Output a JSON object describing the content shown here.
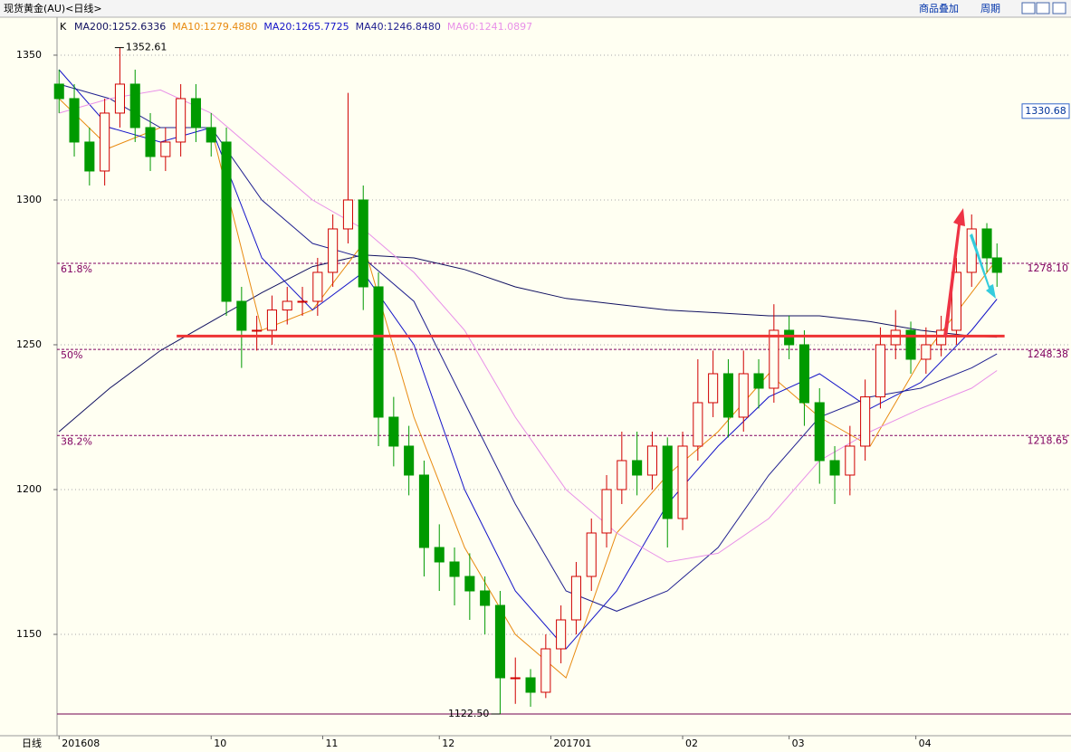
{
  "toolbar": {
    "title": "现货黄金(AU)<日线>",
    "buttons": [
      "商品叠加",
      "周期"
    ]
  },
  "chart_data": {
    "type": "candlestick",
    "indicator_label": "K",
    "period_label": "日线",
    "xlim": [
      -0.4,
      199.6
    ],
    "ylim": [
      1115,
      1362.8
    ],
    "yticks": [
      1150,
      1200,
      1250,
      1300,
      1350
    ],
    "xticks": [
      {
        "value": 0,
        "label": "201608"
      },
      {
        "value": 30,
        "label": "10"
      },
      {
        "value": 52,
        "label": "11"
      },
      {
        "value": 75,
        "label": "12"
      },
      {
        "value": 97,
        "label": "201701"
      },
      {
        "value": 123,
        "label": "02"
      },
      {
        "value": 144,
        "label": "03"
      },
      {
        "value": 169,
        "label": "04"
      }
    ],
    "grid": true,
    "up_color": "#d00000",
    "down_color": "#009a00",
    "x": [
      0,
      3,
      6,
      9,
      12,
      15,
      18,
      21,
      24,
      27,
      30,
      33,
      36,
      39,
      42,
      45,
      48,
      51,
      54,
      57,
      60,
      63,
      66,
      69,
      72,
      75,
      78,
      81,
      84,
      87,
      90,
      93,
      96,
      99,
      102,
      105,
      108,
      111,
      114,
      117,
      120,
      123,
      126,
      129,
      132,
      135,
      138,
      141,
      144,
      147,
      150,
      153,
      156,
      159,
      162,
      165,
      168,
      171,
      174,
      177,
      180,
      183,
      185
    ],
    "series": [
      {
        "name": "K",
        "ohlc": [
          [
            1340,
            1345,
            1330,
            1335
          ],
          [
            1335,
            1340,
            1315,
            1320
          ],
          [
            1320,
            1325,
            1305,
            1310
          ],
          [
            1310,
            1335,
            1305,
            1330
          ],
          [
            1330,
            1352.61,
            1325,
            1340
          ],
          [
            1340,
            1345,
            1320,
            1325
          ],
          [
            1325,
            1330,
            1310,
            1315
          ],
          [
            1315,
            1325,
            1310,
            1320
          ],
          [
            1320,
            1340,
            1315,
            1335
          ],
          [
            1335,
            1340,
            1320,
            1325
          ],
          [
            1325,
            1330,
            1315,
            1320
          ],
          [
            1320,
            1325,
            1260,
            1265
          ],
          [
            1265,
            1270,
            1242,
            1255
          ],
          [
            1255,
            1260,
            1248,
            1255
          ],
          [
            1255,
            1267,
            1250,
            1262
          ],
          [
            1262,
            1270,
            1257,
            1265
          ],
          [
            1265,
            1270,
            1260,
            1265
          ],
          [
            1265,
            1280,
            1260,
            1275
          ],
          [
            1275,
            1295,
            1270,
            1290
          ],
          [
            1290,
            1337,
            1285,
            1300
          ],
          [
            1300,
            1305,
            1262,
            1270
          ],
          [
            1270,
            1275,
            1215,
            1225
          ],
          [
            1225,
            1232,
            1208,
            1215
          ],
          [
            1215,
            1222,
            1198,
            1205
          ],
          [
            1205,
            1210,
            1170,
            1180
          ],
          [
            1180,
            1188,
            1165,
            1175
          ],
          [
            1175,
            1180,
            1160,
            1170
          ],
          [
            1170,
            1178,
            1155,
            1165
          ],
          [
            1165,
            1170,
            1150,
            1160
          ],
          [
            1160,
            1165,
            1122.5,
            1135
          ],
          [
            1135,
            1142,
            1126,
            1135
          ],
          [
            1135,
            1138,
            1125,
            1130
          ],
          [
            1130,
            1150,
            1128,
            1145
          ],
          [
            1145,
            1160,
            1140,
            1155
          ],
          [
            1155,
            1175,
            1150,
            1170
          ],
          [
            1170,
            1190,
            1165,
            1185
          ],
          [
            1185,
            1205,
            1180,
            1200
          ],
          [
            1200,
            1220,
            1195,
            1210
          ],
          [
            1210,
            1220,
            1198,
            1205
          ],
          [
            1205,
            1220,
            1200,
            1215
          ],
          [
            1215,
            1218,
            1180,
            1190
          ],
          [
            1190,
            1220,
            1186,
            1215
          ],
          [
            1215,
            1245,
            1210,
            1230
          ],
          [
            1230,
            1248,
            1225,
            1240
          ],
          [
            1240,
            1245,
            1218,
            1225
          ],
          [
            1225,
            1248,
            1220,
            1240
          ],
          [
            1240,
            1245,
            1228,
            1235
          ],
          [
            1235,
            1264,
            1230,
            1255
          ],
          [
            1255,
            1260,
            1245,
            1250
          ],
          [
            1250,
            1255,
            1222,
            1230
          ],
          [
            1230,
            1235,
            1202,
            1210
          ],
          [
            1210,
            1215,
            1195,
            1205
          ],
          [
            1205,
            1222,
            1198,
            1215
          ],
          [
            1215,
            1238,
            1210,
            1232
          ],
          [
            1232,
            1256,
            1228,
            1250
          ],
          [
            1250,
            1262,
            1245,
            1255
          ],
          [
            1255,
            1258,
            1240,
            1245
          ],
          [
            1245,
            1256,
            1240,
            1250
          ],
          [
            1250,
            1260,
            1246,
            1255
          ],
          [
            1255,
            1280,
            1250,
            1275
          ],
          [
            1275,
            1295,
            1270,
            1290
          ],
          [
            1290,
            1292,
            1275,
            1280
          ],
          [
            1280,
            1285,
            1270,
            1275
          ]
        ]
      }
    ],
    "lines": [
      {
        "label": "MA200:1252.6336",
        "color": "#101060",
        "x": [
          0,
          10,
          20,
          30,
          40,
          50,
          60,
          70,
          80,
          90,
          100,
          110,
          120,
          130,
          140,
          150,
          160,
          170,
          180,
          185
        ],
        "values": [
          1220,
          1235,
          1248,
          1258,
          1268,
          1277,
          1281,
          1280,
          1276,
          1270,
          1266,
          1264,
          1262,
          1261,
          1260,
          1260,
          1258,
          1255,
          1253,
          1252.63
        ]
      },
      {
        "label": "MA10:1279.4880",
        "color": "#e88a10",
        "x": [
          0,
          10,
          20,
          30,
          40,
          50,
          60,
          70,
          80,
          90,
          100,
          110,
          120,
          130,
          140,
          150,
          160,
          170,
          180,
          185
        ],
        "values": [
          1335,
          1318,
          1325,
          1325,
          1255,
          1262,
          1285,
          1225,
          1180,
          1150,
          1135,
          1185,
          1205,
          1220,
          1240,
          1225,
          1215,
          1245,
          1268,
          1279.49
        ]
      },
      {
        "label": "MA20:1265.7725",
        "color": "#1414c8",
        "x": [
          0,
          10,
          20,
          30,
          40,
          50,
          60,
          70,
          80,
          90,
          100,
          110,
          120,
          130,
          140,
          150,
          160,
          170,
          180,
          185
        ],
        "values": [
          1345,
          1325,
          1320,
          1325,
          1280,
          1262,
          1275,
          1250,
          1200,
          1165,
          1145,
          1165,
          1195,
          1215,
          1232,
          1240,
          1228,
          1237,
          1255,
          1265.77
        ]
      },
      {
        "label": "MA40:1246.8480",
        "color": "#202090",
        "x": [
          0,
          10,
          20,
          30,
          40,
          50,
          60,
          70,
          80,
          90,
          100,
          110,
          120,
          130,
          140,
          150,
          160,
          170,
          180,
          185
        ],
        "values": [
          1340,
          1335,
          1325,
          1325,
          1300,
          1285,
          1280,
          1265,
          1230,
          1195,
          1165,
          1158,
          1165,
          1180,
          1205,
          1225,
          1232,
          1235,
          1242,
          1246.85
        ]
      },
      {
        "label": "MA60:1241.0897",
        "color": "#e890e8",
        "x": [
          0,
          10,
          20,
          30,
          40,
          50,
          60,
          70,
          80,
          90,
          100,
          110,
          120,
          130,
          140,
          150,
          160,
          170,
          180,
          185
        ],
        "values": [
          1330,
          1335,
          1338,
          1330,
          1315,
          1300,
          1290,
          1275,
          1255,
          1225,
          1200,
          1185,
          1175,
          1178,
          1190,
          1210,
          1220,
          1228,
          1235,
          1241.09
        ]
      }
    ],
    "fib_levels": [
      {
        "name": "61.8%",
        "value": 1278.1,
        "label": "1278.10"
      },
      {
        "name": "50%",
        "value": 1248.38,
        "label": "1248.38"
      },
      {
        "name": "38.2%",
        "value": 1218.65,
        "label": "1218.65"
      }
    ],
    "annotations": [
      {
        "text": "1352.61",
        "value": 1352.61,
        "x": 11
      },
      {
        "text": "1122.50",
        "value": 1122.5,
        "x": 87
      }
    ],
    "support_line": {
      "value": 1253,
      "x": [
        23.2,
        186.5
      ]
    },
    "low_line": 1122.5,
    "price_tag": {
      "value": 1330.68,
      "label": "1330.68"
    }
  }
}
